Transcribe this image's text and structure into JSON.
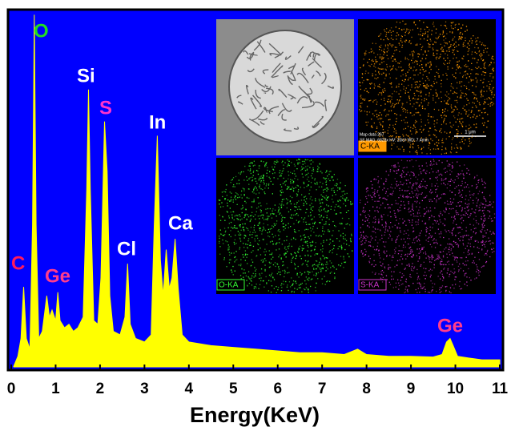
{
  "chart_data": {
    "type": "area",
    "xlabel": "Energy(KeV)",
    "background": "#0000ff",
    "color": "#ffff00",
    "x": [
      0.05,
      0.15,
      0.22,
      0.28,
      0.34,
      0.42,
      0.48,
      0.52,
      0.56,
      0.62,
      0.7,
      0.8,
      0.86,
      0.92,
      1.0,
      1.05,
      1.1,
      1.2,
      1.3,
      1.4,
      1.5,
      1.62,
      1.7,
      1.74,
      1.78,
      1.86,
      1.95,
      2.02,
      2.1,
      2.16,
      2.22,
      2.3,
      2.45,
      2.56,
      2.62,
      2.68,
      2.8,
      3.0,
      3.15,
      3.22,
      3.29,
      3.36,
      3.42,
      3.49,
      3.56,
      3.62,
      3.69,
      3.76,
      3.85,
      4.0,
      4.5,
      5.0,
      5.5,
      6.0,
      6.5,
      7.0,
      7.5,
      7.8,
      8.0,
      8.5,
      9.0,
      9.5,
      9.7,
      9.8,
      9.88,
      9.95,
      10.05,
      10.3,
      10.6,
      11
    ],
    "values": [
      0,
      3,
      8,
      22.5,
      8,
      5,
      40,
      99,
      40,
      8,
      10,
      20,
      14,
      16,
      13,
      21,
      13,
      11,
      12,
      10,
      11,
      14,
      50,
      78,
      50,
      13,
      12,
      25,
      69,
      55,
      20,
      10,
      9,
      14,
      29,
      12,
      8,
      7,
      9,
      40,
      65,
      30,
      20,
      33,
      22,
      25,
      36,
      22,
      9,
      7,
      6,
      5.5,
      5,
      4.5,
      4,
      4,
      3.5,
      5,
      3.5,
      3,
      3,
      2.8,
      3.5,
      7,
      8,
      6,
      3,
      2.5,
      2,
      2
    ],
    "xlim": [
      0,
      11
    ],
    "ylim": [
      0,
      100
    ],
    "xticks": [
      0,
      1,
      2,
      3,
      4,
      5,
      6,
      7,
      8,
      9,
      10,
      11
    ],
    "annotations": [
      {
        "text": "C",
        "color": "#ff1a5e"
      },
      {
        "text": "O",
        "color": "#22dd22"
      },
      {
        "text": "Ge",
        "color": "#ff3c8c"
      },
      {
        "text": "Si",
        "color": "#ffffff"
      },
      {
        "text": "S",
        "color": "#ff33cc"
      },
      {
        "text": "Cl",
        "color": "#ffffff"
      },
      {
        "text": "In",
        "color": "#ffffff"
      },
      {
        "text": "Ca",
        "color": "#ffffff"
      },
      {
        "text": "Ge",
        "color": "#ff3c8c"
      }
    ],
    "insets": [
      {
        "label": "C-KA",
        "color": "#ff9900"
      },
      {
        "label": "O-KA",
        "color": "#33ff33"
      },
      {
        "label": "S-KA",
        "color": "#cc33cc"
      }
    ],
    "sem_info": [
      "Map data 267",
      "SE MAG: 6828x HV: 20kV WD: 7.4mm"
    ],
    "scale_bar": "1 μm"
  }
}
